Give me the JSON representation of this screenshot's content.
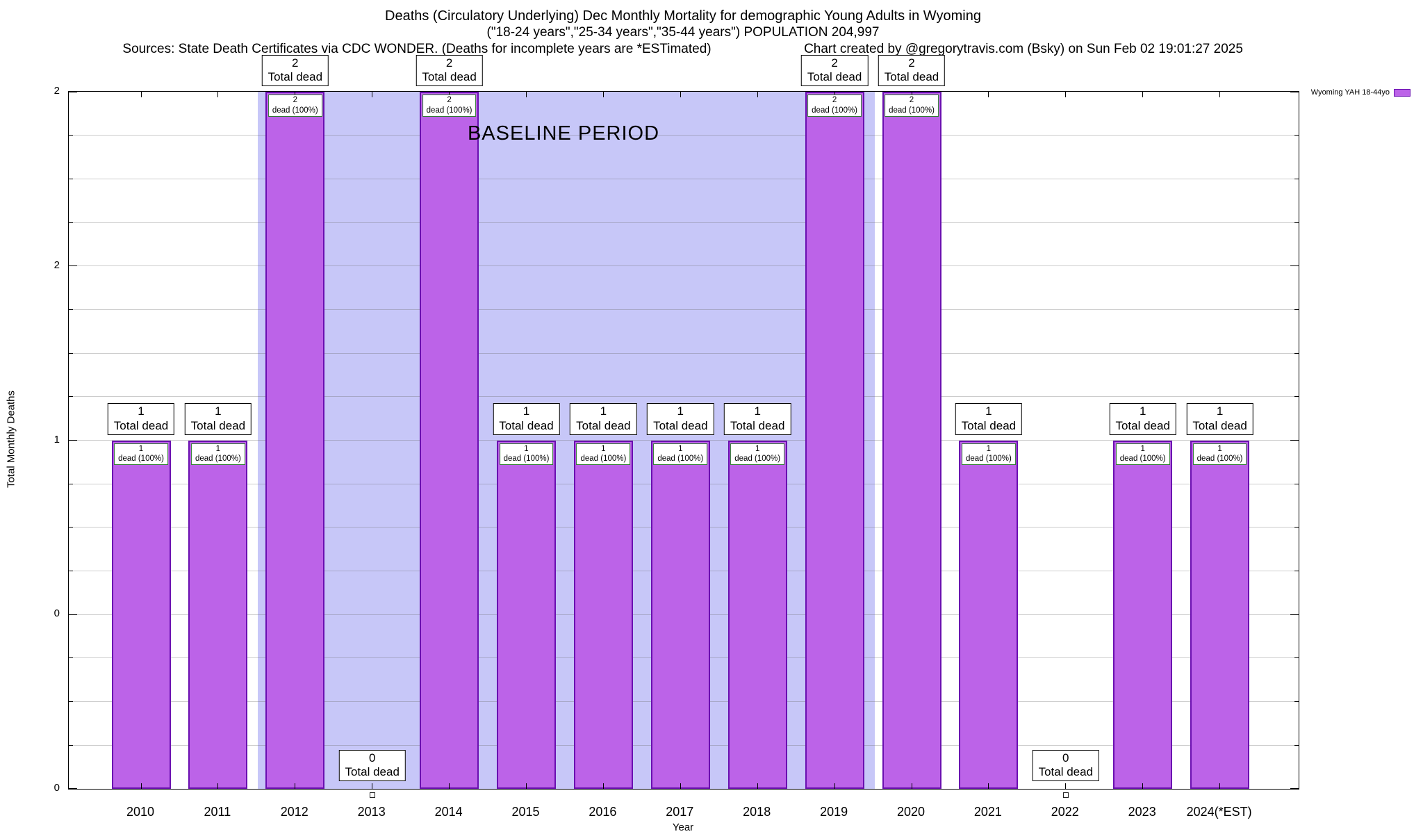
{
  "colors": {
    "bar_fill": "#bc63e8",
    "bar_border": "#6a0fb0",
    "baseline_band": "#c7c7f8",
    "inner_box_border": "#2f7d2f",
    "grid": "rgba(110,110,110,0.35)"
  },
  "chart_data": {
    "type": "bar",
    "title": "Deaths (Circulatory Underlying) Dec Monthly Mortality for demographic Young Adults in Wyoming",
    "subtitle": "(\"18-24 years\",\"25-34 years\",\"35-44 years\") POPULATION 204,997",
    "source_note": "Sources: State Death Certificates via CDC WONDER. (Deaths for incomplete years are *ESTimated)",
    "credit_note": "Chart created by @gregorytravis.com (Bsky) on Sun Feb 02 19:01:27 2025",
    "xlabel": "Year",
    "ylabel": "Total Monthly Deaths",
    "ylim": [
      0,
      2
    ],
    "y_ticks": [
      {
        "value": 2.0,
        "label": "2"
      },
      {
        "value": 1.5,
        "label": "2"
      },
      {
        "value": 1.0,
        "label": "1"
      },
      {
        "value": 0.5,
        "label": "0"
      },
      {
        "value": 0.0,
        "label": "0"
      }
    ],
    "grid": {
      "horizontal": true,
      "minor_step": 0.125
    },
    "legend": {
      "label": "Wyoming YAH 18-44yo",
      "position": "top-right"
    },
    "categories": [
      "2010",
      "2011",
      "2012",
      "2013",
      "2014",
      "2015",
      "2016",
      "2017",
      "2018",
      "2019",
      "2020",
      "2021",
      "2022",
      "2023",
      "2024(*EST)"
    ],
    "values": [
      1,
      1,
      2,
      0,
      2,
      1,
      1,
      1,
      1,
      2,
      2,
      1,
      0,
      1,
      1
    ],
    "total_label": "Total dead",
    "inner_label": "dead (100%)",
    "baseline_band": {
      "label": "BASELINE PERIOD",
      "start_category": "2012",
      "end_category": "2019"
    }
  }
}
